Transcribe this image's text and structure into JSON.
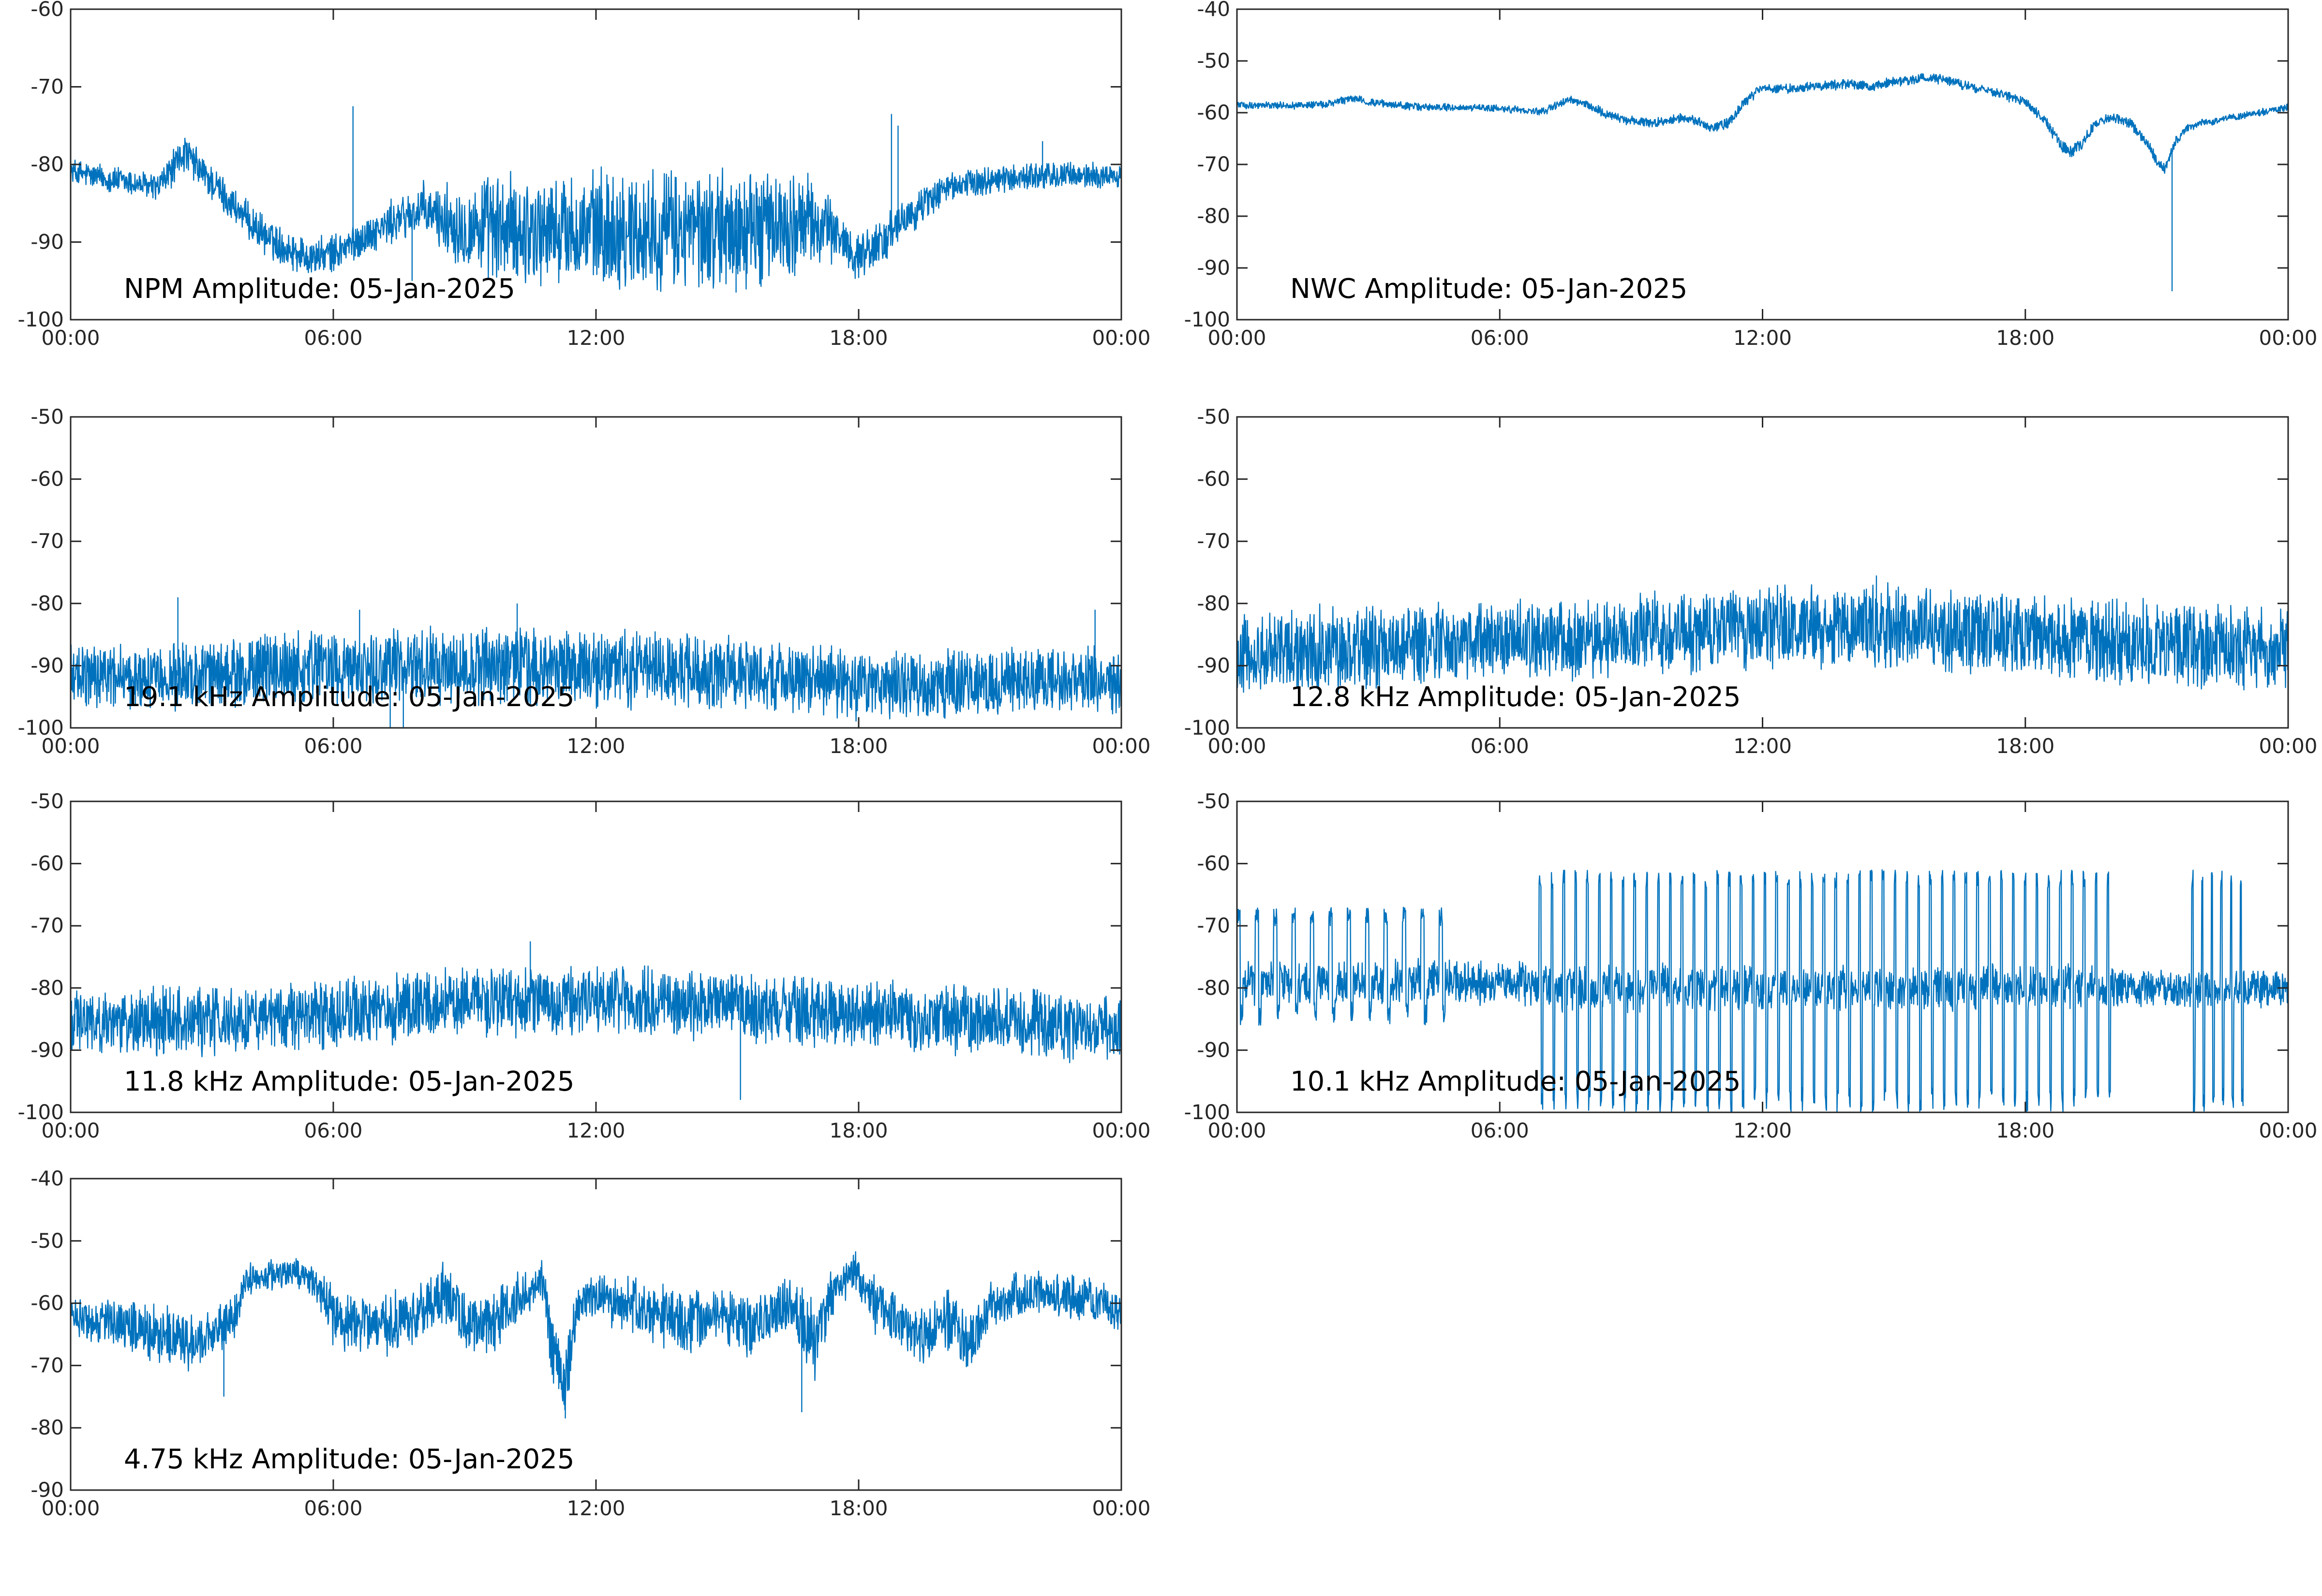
{
  "colors": {
    "trace": "#0072bd",
    "axes": "#262626",
    "background": "#ffffff"
  },
  "chart_data": [
    {
      "type": "line",
      "title": "NPM Amplitude: 05-Jan-2025",
      "x_tick_labels": [
        "00:00",
        "06:00",
        "12:00",
        "18:00",
        "00:00"
      ],
      "y_tick_labels": [
        "-60",
        "-70",
        "-80",
        "-90",
        "-100"
      ],
      "xlim_hours": [
        0,
        24
      ],
      "ylim": [
        -100,
        -60
      ],
      "grid": false,
      "series": [
        {
          "x_hours": [
            0,
            0.5,
            1,
            1.5,
            2,
            2.4,
            2.6,
            3,
            3.5,
            4,
            4.5,
            5,
            5.5,
            6,
            6.5,
            7,
            7.5,
            8,
            8.5,
            9,
            10,
            11,
            12,
            13,
            14,
            15,
            16,
            17,
            17.5,
            18,
            18.5,
            19,
            19.5,
            20,
            21,
            22,
            23,
            24
          ],
          "center": [
            -81,
            -81.5,
            -82,
            -82.5,
            -83,
            -80,
            -78.5,
            -81,
            -84,
            -87,
            -89.5,
            -91,
            -92,
            -91.5,
            -90,
            -88.5,
            -87,
            -86,
            -87,
            -88,
            -88.5,
            -88.5,
            -88.5,
            -88.5,
            -88.5,
            -88.5,
            -88,
            -87.5,
            -89,
            -92,
            -90,
            -87.5,
            -85,
            -83,
            -82,
            -81.5,
            -81.5,
            -81.5
          ],
          "spread": [
            1.5,
            1.5,
            1.5,
            1.5,
            1.5,
            2,
            2,
            2,
            2,
            2,
            2,
            2,
            2,
            2,
            2,
            2,
            2.5,
            3,
            3.5,
            5,
            6,
            6,
            6.5,
            6.5,
            6.5,
            6.5,
            6,
            5,
            3,
            2.5,
            2.5,
            2,
            2,
            1.5,
            1.5,
            1.5,
            1.5,
            1.5
          ],
          "spikes": [
            {
              "x_hours": 6.45,
              "y": -72.5
            },
            {
              "x_hours": 7.8,
              "y": -95
            },
            {
              "x_hours": 18.75,
              "y": -73.5
            },
            {
              "x_hours": 18.9,
              "y": -75
            },
            {
              "x_hours": 22.2,
              "y": -77
            },
            {
              "x_hours": 15.2,
              "y": -96.5
            }
          ]
        }
      ]
    },
    {
      "type": "line",
      "title": "NWC Amplitude: 05-Jan-2025",
      "x_tick_labels": [
        "00:00",
        "06:00",
        "12:00",
        "18:00",
        "00:00"
      ],
      "y_tick_labels": [
        "-40",
        "-50",
        "-60",
        "-70",
        "-80",
        "-90",
        "-100"
      ],
      "xlim_hours": [
        0,
        24
      ],
      "ylim": [
        -100,
        -40
      ],
      "grid": false,
      "series": [
        {
          "x_hours": [
            0,
            1,
            2,
            2.5,
            2.7,
            3,
            4,
            5,
            6,
            7,
            7.3,
            7.6,
            8,
            8.5,
            9,
            9.5,
            10,
            10.5,
            10.8,
            11.2,
            11.6,
            12,
            12.5,
            13,
            14,
            14.5,
            15,
            15.5,
            16,
            16.5,
            17,
            17.5,
            18,
            18.4,
            18.8,
            19,
            19.3,
            19.6,
            20,
            20.4,
            20.7,
            21,
            21.2,
            21.4,
            21.7,
            22,
            23,
            24
          ],
          "center": [
            -58.5,
            -58.6,
            -58.5,
            -57.5,
            -57.2,
            -58,
            -58.8,
            -59,
            -59.2,
            -59.8,
            -58.5,
            -57.5,
            -58.5,
            -60.5,
            -61.5,
            -62,
            -61,
            -61.5,
            -63,
            -62,
            -58,
            -55,
            -55.5,
            -55,
            -54.5,
            -55,
            -54,
            -53.5,
            -53.5,
            -54.5,
            -55.5,
            -56.5,
            -58,
            -61,
            -66,
            -67.5,
            -66,
            -62,
            -61,
            -62,
            -65,
            -69,
            -71,
            -66,
            -63,
            -62,
            -60.5,
            -59
          ],
          "spread": [
            0.6,
            0.6,
            0.6,
            0.6,
            0.6,
            0.6,
            0.6,
            0.6,
            0.6,
            0.6,
            0.6,
            0.6,
            0.7,
            0.8,
            0.8,
            0.8,
            0.8,
            0.8,
            0.8,
            0.8,
            0.8,
            0.8,
            0.8,
            0.8,
            0.8,
            0.8,
            0.8,
            0.8,
            0.8,
            0.8,
            0.8,
            0.8,
            0.8,
            0.8,
            1.2,
            1.2,
            1,
            0.8,
            0.8,
            0.8,
            0.8,
            1,
            1,
            0.8,
            0.6,
            0.6,
            0.6,
            0.6
          ],
          "spikes": [
            {
              "x_hours": 21.35,
              "y": -94.5
            }
          ]
        }
      ]
    },
    {
      "type": "line",
      "title": "19.1 kHz Amplitude: 05-Jan-2025",
      "x_tick_labels": [
        "00:00",
        "06:00",
        "12:00",
        "18:00",
        "00:00"
      ],
      "y_tick_labels": [
        "-50",
        "-60",
        "-70",
        "-80",
        "-90",
        "-100"
      ],
      "xlim_hours": [
        0,
        24
      ],
      "ylim": [
        -100,
        -50
      ],
      "grid": false,
      "series": [
        {
          "x_hours": [
            0,
            3,
            6,
            9,
            12,
            15,
            18,
            21,
            24
          ],
          "center": [
            -92,
            -91.5,
            -90.5,
            -90,
            -90.5,
            -91,
            -93,
            -93,
            -92
          ],
          "spread": [
            4.5,
            4.5,
            5,
            5,
            5,
            5,
            4.5,
            4.5,
            4.5
          ],
          "spikes": [
            {
              "x_hours": 2.45,
              "y": -79
            },
            {
              "x_hours": 6.6,
              "y": -81
            },
            {
              "x_hours": 10.2,
              "y": -80
            },
            {
              "x_hours": 23.4,
              "y": -81
            },
            {
              "x_hours": 7.3,
              "y": -100
            },
            {
              "x_hours": 7.6,
              "y": -100
            }
          ]
        }
      ]
    },
    {
      "type": "line",
      "title": "12.8 kHz Amplitude: 05-Jan-2025",
      "x_tick_labels": [
        "00:00",
        "06:00",
        "12:00",
        "18:00",
        "00:00"
      ],
      "y_tick_labels": [
        "-50",
        "-60",
        "-70",
        "-80",
        "-90",
        "-100"
      ],
      "xlim_hours": [
        0,
        24
      ],
      "ylim": [
        -100,
        -50
      ],
      "grid": false,
      "series": [
        {
          "x_hours": [
            0,
            3,
            6,
            9,
            12,
            15,
            18,
            21,
            24
          ],
          "center": [
            -88,
            -87,
            -86,
            -85,
            -84,
            -83.5,
            -85,
            -86.5,
            -88
          ],
          "spread": [
            5.5,
            5.5,
            5.5,
            5.5,
            5.5,
            5.5,
            5.5,
            5.5,
            5.5
          ],
          "spikes": [
            {
              "x_hours": 14.6,
              "y": -75.5
            }
          ]
        }
      ]
    },
    {
      "type": "line",
      "title": "11.8 kHz Amplitude: 05-Jan-2025",
      "x_tick_labels": [
        "00:00",
        "06:00",
        "12:00",
        "18:00",
        "00:00"
      ],
      "y_tick_labels": [
        "-50",
        "-60",
        "-70",
        "-80",
        "-90",
        "-100"
      ],
      "xlim_hours": [
        0,
        24
      ],
      "ylim": [
        -100,
        -50
      ],
      "grid": false,
      "series": [
        {
          "x_hours": [
            0,
            3,
            6,
            9,
            12,
            15,
            18,
            21,
            24
          ],
          "center": [
            -86,
            -85.5,
            -84,
            -82.5,
            -82,
            -83,
            -84.5,
            -85.5,
            -86.5
          ],
          "spread": [
            4.5,
            4.5,
            4.5,
            4.5,
            4.5,
            4.5,
            4.5,
            4.5,
            4.5
          ],
          "spikes": [
            {
              "x_hours": 10.5,
              "y": -72.5
            },
            {
              "x_hours": 15.3,
              "y": -98
            }
          ]
        }
      ]
    },
    {
      "type": "line",
      "title": "10.1 kHz Amplitude: 05-Jan-2025",
      "x_tick_labels": [
        "00:00",
        "06:00",
        "12:00",
        "18:00",
        "00:00"
      ],
      "y_tick_labels": [
        "-50",
        "-60",
        "-70",
        "-80",
        "-90",
        "-100"
      ],
      "xlim_hours": [
        0,
        24
      ],
      "ylim": [
        -100,
        -50
      ],
      "grid": false,
      "series": [
        {
          "x_hours": [
            0,
            6,
            6.8,
            7,
            12,
            19.5,
            20,
            21.5,
            22.5,
            24
          ],
          "center": [
            -79,
            -79,
            -79,
            -80,
            -80,
            -80,
            -80,
            -80,
            -80,
            -80
          ],
          "spread": [
            3,
            3,
            3,
            3,
            3,
            3,
            2.5,
            2.5,
            2.5,
            2.5
          ],
          "burst_regions": [
            {
              "from_hours": 0,
              "to_hours": 5,
              "period_hours": 0.42,
              "peak": -70,
              "trough": -86
            },
            {
              "from_hours": 6.9,
              "to_hours": 20,
              "period_hours": 0.27,
              "peak": -64,
              "trough": -100
            },
            {
              "from_hours": 21.8,
              "to_hours": 23,
              "period_hours": 0.22,
              "peak": -64,
              "trough": -100
            }
          ]
        }
      ]
    },
    {
      "type": "line",
      "title": "4.75 kHz Amplitude: 05-Jan-2025",
      "x_tick_labels": [
        "00:00",
        "06:00",
        "12:00",
        "18:00",
        "00:00"
      ],
      "y_tick_labels": [
        "-40",
        "-50",
        "-60",
        "-70",
        "-80",
        "-90"
      ],
      "xlim_hours": [
        0,
        24
      ],
      "ylim": [
        -90,
        -40
      ],
      "grid": false,
      "series": [
        {
          "x_hours": [
            0,
            1,
            2,
            3,
            3.8,
            4,
            5,
            5.5,
            6,
            7,
            8,
            8.5,
            9,
            9.5,
            10,
            10.5,
            10.8,
            11,
            11.3,
            11.6,
            12,
            13,
            14,
            15,
            15.5,
            16,
            16.5,
            17,
            17.5,
            18,
            18.3,
            19,
            19.5,
            20,
            20.5,
            21,
            22,
            23,
            24
          ],
          "center": [
            -62,
            -63,
            -65,
            -66,
            -62,
            -56,
            -55,
            -56,
            -62,
            -64,
            -61,
            -58,
            -63,
            -64,
            -60,
            -58,
            -57,
            -68,
            -72,
            -60,
            -59,
            -61,
            -63,
            -62,
            -64,
            -62,
            -60,
            -66,
            -57,
            -55,
            -60,
            -63,
            -65,
            -62,
            -67,
            -60,
            -58,
            -59,
            -61
          ],
          "spread": [
            3,
            3,
            4,
            4,
            3,
            2,
            2,
            2,
            4,
            4,
            4,
            4,
            4,
            4,
            4,
            3,
            3,
            5,
            5,
            3,
            3,
            4,
            4,
            4,
            4,
            4,
            4,
            5,
            3,
            3,
            4,
            4,
            4,
            4,
            4,
            3,
            3,
            3,
            3
          ],
          "spikes": [
            {
              "x_hours": 11.3,
              "y": -78.5
            },
            {
              "x_hours": 16.7,
              "y": -77.5
            },
            {
              "x_hours": 3.5,
              "y": -75
            }
          ]
        }
      ]
    }
  ]
}
